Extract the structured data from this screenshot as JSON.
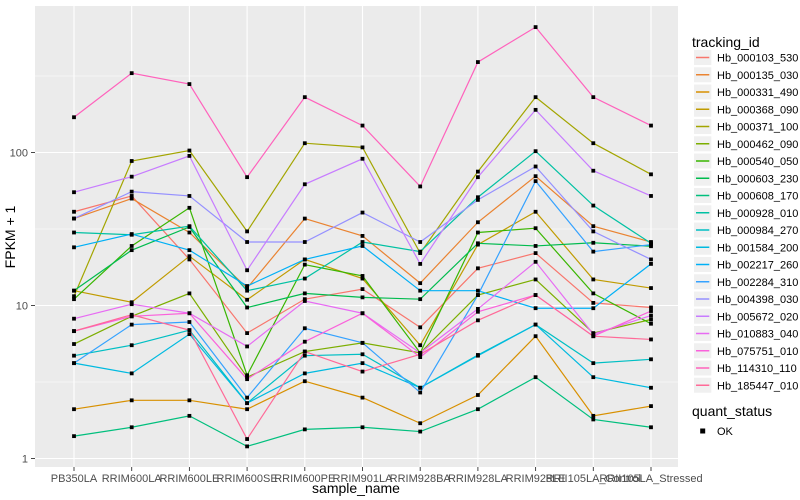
{
  "figure": {
    "background": "#FFFFFF",
    "panel_bg": "#EBEBEB",
    "grid_color": "#FFFFFF",
    "tick_color": "#333333",
    "tick_label_color": "#4D4D4D",
    "text_color": "#000000",
    "point_color": "#000000"
  },
  "axes": {
    "x_title": "sample_name",
    "y_title": "FPKM + 1",
    "y_tick_labels": [
      "1",
      "10",
      "100"
    ]
  },
  "legend": {
    "tracking_title": "tracking_id",
    "quant_title": "quant_status",
    "quant_items": [
      {
        "label": "OK"
      }
    ]
  },
  "chart_data": {
    "type": "line",
    "y_scale": "log10",
    "ylim": [
      1,
      850
    ],
    "y_major_ticks": [
      1,
      10,
      100
    ],
    "y_minor_ticks": [
      3.1623,
      31.623,
      316.23
    ],
    "grid": true,
    "marker": "filled-square",
    "legend_position": "right",
    "xlabel": "sample_name",
    "ylabel": "FPKM + 1",
    "x_categories": [
      "PB350LA",
      "RRIM600LA",
      "RRIM600LE",
      "RRIM600SE",
      "RRIM600PE",
      "RRIM901LA",
      "RRIM928BA",
      "RRIM928LA",
      "RRIM928LE",
      "RRII105LA_Control",
      "RRII105LA_Stressed"
    ],
    "series": [
      {
        "name": "Hb_000103_530",
        "color": "#F8766D",
        "values": [
          41,
          52,
          20,
          6.6,
          11,
          12.8,
          7.2,
          17.5,
          22,
          10.4,
          9.7
        ]
      },
      {
        "name": "Hb_000135_030",
        "color": "#EA8331",
        "values": [
          37,
          50,
          30,
          13,
          37,
          28.5,
          14,
          35,
          70,
          33,
          26
        ]
      },
      {
        "name": "Hb_000331_490",
        "color": "#D89000",
        "values": [
          2.1,
          2.4,
          2.4,
          2.1,
          3.2,
          2.5,
          1.7,
          2.6,
          6.3,
          1.9,
          2.2
        ]
      },
      {
        "name": "Hb_000368_090",
        "color": "#C09B00",
        "values": [
          12.5,
          10.5,
          21,
          10.9,
          20,
          15,
          5.5,
          25,
          41,
          14.8,
          13
        ]
      },
      {
        "name": "Hb_000371_100",
        "color": "#A3A500",
        "values": [
          11.5,
          88,
          103,
          30.5,
          115,
          108,
          22,
          75,
          230,
          115,
          72
        ]
      },
      {
        "name": "Hb_000462_090",
        "color": "#7CAE00",
        "values": [
          5.6,
          8.5,
          12,
          3.4,
          5.0,
          5.7,
          4.9,
          11.7,
          14.8,
          6.6,
          8.1
        ]
      },
      {
        "name": "Hb_000540_050",
        "color": "#39B600",
        "values": [
          11,
          24.5,
          43.5,
          3.5,
          18.5,
          15.6,
          4.9,
          30,
          32,
          12,
          7.6
        ]
      },
      {
        "name": "Hb_000603_230",
        "color": "#00BB4E",
        "values": [
          12.5,
          23,
          32.6,
          9.7,
          12,
          11.3,
          11,
          25.5,
          24.5,
          25.7,
          24.4
        ]
      },
      {
        "name": "Hb_000608_170",
        "color": "#00BF7D",
        "values": [
          1.4,
          1.6,
          1.9,
          1.2,
          1.55,
          1.6,
          1.5,
          2.1,
          3.4,
          1.8,
          1.6
        ]
      },
      {
        "name": "Hb_000928_010",
        "color": "#00C1A3",
        "values": [
          30,
          29,
          33,
          12.5,
          15,
          26,
          22.5,
          51,
          102,
          45,
          25.5
        ]
      },
      {
        "name": "Hb_000984_270",
        "color": "#00BFC4",
        "values": [
          4.7,
          5.5,
          6.9,
          2.3,
          4.7,
          4.8,
          2.9,
          4.75,
          7.5,
          4.2,
          4.45
        ]
      },
      {
        "name": "Hb_001584_200",
        "color": "#00BAE0",
        "values": [
          4.2,
          3.6,
          6.5,
          2.3,
          3.6,
          4.2,
          2.9,
          4.7,
          7.5,
          3.4,
          2.9
        ]
      },
      {
        "name": "Hb_002217_260",
        "color": "#00B0F6",
        "values": [
          24,
          29.3,
          23,
          13.4,
          20,
          24.5,
          12.5,
          12.5,
          9.6,
          9.6,
          18.7
        ]
      },
      {
        "name": "Hb_002284_310",
        "color": "#35A2FF",
        "values": [
          4.2,
          7.5,
          7.8,
          2.5,
          7.1,
          5.7,
          2.7,
          11.7,
          65,
          22.5,
          25
        ]
      },
      {
        "name": "Hb_004398_030",
        "color": "#9590FF",
        "values": [
          37,
          55.5,
          52,
          26,
          26,
          40.5,
          26,
          49,
          81,
          30.5,
          20
        ]
      },
      {
        "name": "Hb_005672_020",
        "color": "#C77CFF",
        "values": [
          55,
          69.5,
          95,
          17,
          62,
          91,
          18.7,
          69,
          190,
          76,
          52
        ]
      },
      {
        "name": "Hb_010883_040",
        "color": "#E76BF3",
        "values": [
          8.2,
          10.2,
          8.9,
          5.4,
          10.7,
          8.9,
          4.9,
          9.5,
          19.3,
          6.5,
          8.6
        ]
      },
      {
        "name": "Hb_075751_010",
        "color": "#FA62DB",
        "values": [
          6.8,
          8.5,
          8.9,
          3.3,
          5.8,
          8.9,
          4.6,
          9.1,
          11.7,
          6.3,
          9.2
        ]
      },
      {
        "name": "Hb_114310_110",
        "color": "#FF62BC",
        "values": [
          170,
          330,
          280,
          69,
          230,
          150,
          60,
          390,
          660,
          230,
          150
        ]
      },
      {
        "name": "Hb_185447_010",
        "color": "#FF6A98",
        "values": [
          6.8,
          8.7,
          6.9,
          1.34,
          5.0,
          3.7,
          4.8,
          8.0,
          11.7,
          6.3,
          6.0
        ]
      }
    ]
  }
}
